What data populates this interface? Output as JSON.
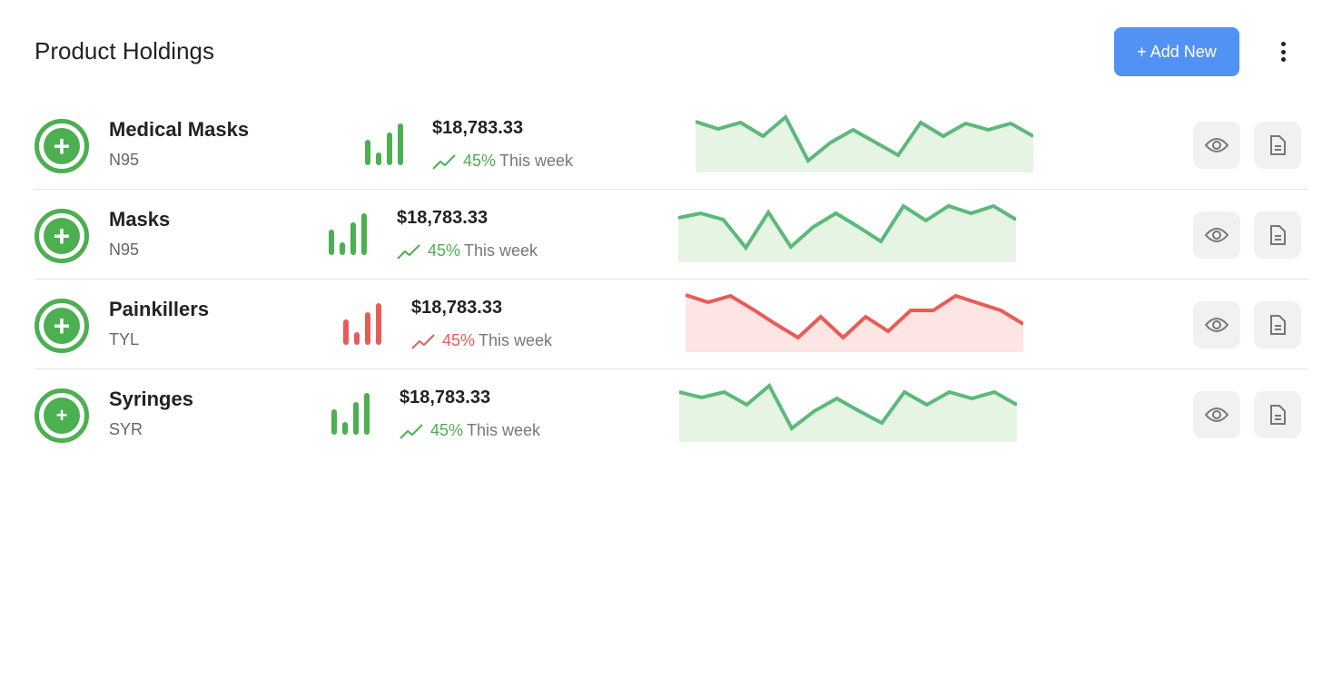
{
  "header": {
    "title": "Product Holdings",
    "add_label": "+ Add New",
    "more_icon": "vertical-dots-icon"
  },
  "colors": {
    "green": "#4caf50",
    "line_green": "#5cb97a",
    "fill_green": "#e6f4e4",
    "red": "#e85c57",
    "fill_red": "#fce5e3",
    "accent": "#5392f5"
  },
  "rows": [
    {
      "name": "Medical Masks",
      "code": "N95",
      "price": "$18,783.33",
      "percent": "45%",
      "period": "This week",
      "trend": "up",
      "color": "green",
      "spark": [
        56,
        48,
        55,
        40,
        61,
        13,
        33,
        47,
        33,
        19,
        55,
        40,
        54,
        47,
        54,
        40
      ]
    },
    {
      "name": "Masks",
      "code": "N95",
      "price": "$18,783.33",
      "percent": "45%",
      "period": "This week",
      "trend": "up",
      "color": "green",
      "spark": [
        49,
        54,
        47,
        16,
        55,
        17,
        39,
        54,
        39,
        23,
        62,
        46,
        62,
        54,
        62,
        47
      ]
    },
    {
      "name": "Painkillers",
      "code": "TYL",
      "price": "$18,783.33",
      "percent": "45%",
      "period": "This week",
      "trend": "up",
      "color": "red",
      "spark": [
        63,
        55,
        62,
        47,
        31,
        16,
        39,
        16,
        39,
        23,
        46,
        46,
        62,
        54,
        46,
        31
      ]
    },
    {
      "name": "Syringes",
      "code": "SYR",
      "price": "$18,783.33",
      "percent": "45%",
      "period": "This week",
      "trend": "up",
      "color": "green",
      "spark": [
        55,
        49,
        55,
        41,
        62,
        15,
        34,
        48,
        34,
        21,
        55,
        41,
        55,
        48,
        55,
        41
      ]
    }
  ]
}
